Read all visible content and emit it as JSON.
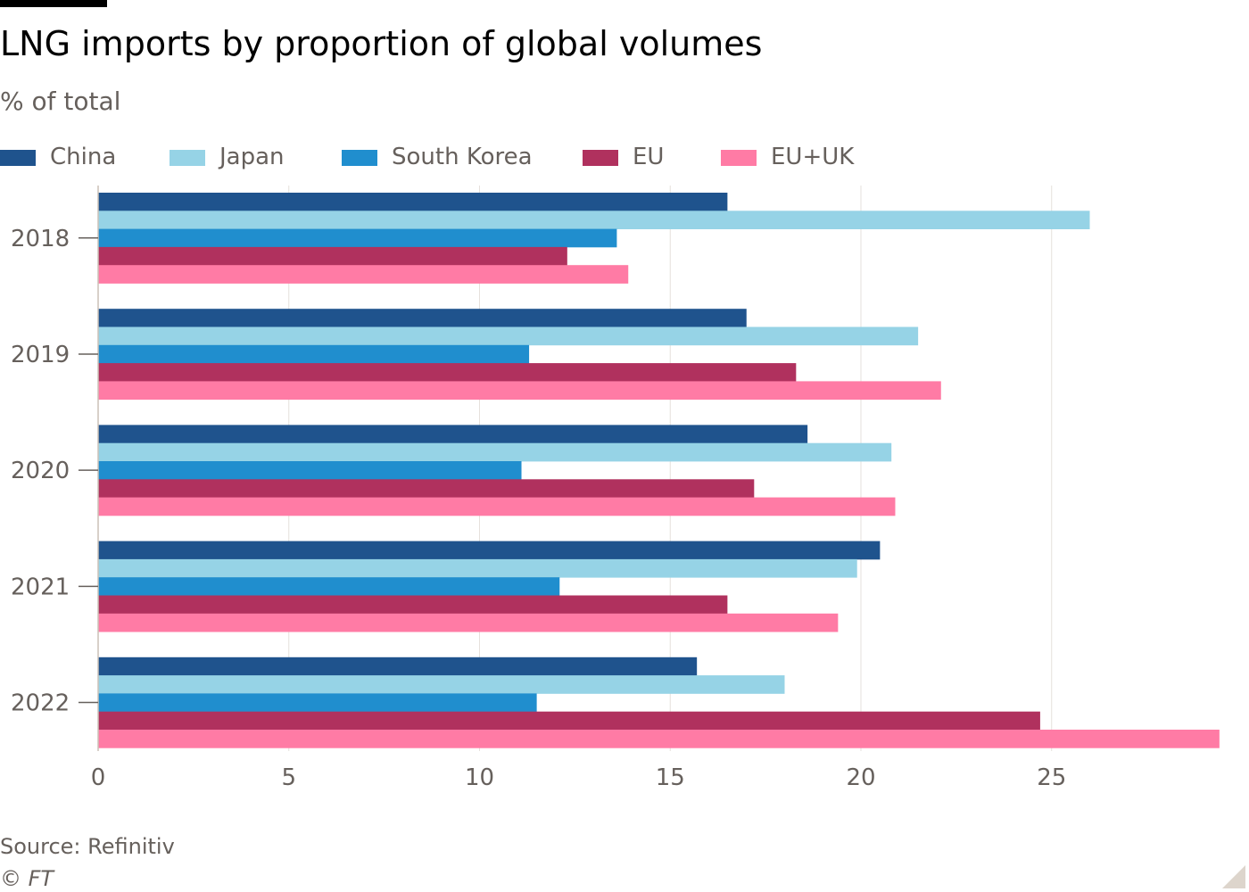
{
  "chart_data": {
    "type": "bar",
    "orientation": "horizontal",
    "title": "LNG imports by proportion of global volumes",
    "subtitle": "% of total",
    "categories": [
      "2018",
      "2019",
      "2020",
      "2021",
      "2022"
    ],
    "series": [
      {
        "name": "China",
        "color": "#1f538d",
        "values": [
          16.5,
          17.0,
          18.6,
          20.5,
          15.7
        ]
      },
      {
        "name": "Japan",
        "color": "#96d3e6",
        "values": [
          26.0,
          21.5,
          20.8,
          19.9,
          18.0
        ]
      },
      {
        "name": "South Korea",
        "color": "#208ece",
        "values": [
          13.6,
          11.3,
          11.1,
          12.1,
          11.5
        ]
      },
      {
        "name": "EU",
        "color": "#b0315e",
        "values": [
          12.3,
          18.3,
          17.2,
          16.5,
          24.7
        ]
      },
      {
        "name": "EU+UK",
        "color": "#ff7ba5",
        "values": [
          13.9,
          22.1,
          20.9,
          19.4,
          29.4
        ]
      }
    ],
    "x_ticks": [
      0,
      5,
      10,
      15,
      20,
      25
    ],
    "xlim": [
      0,
      29.4
    ],
    "xlabel": "",
    "ylabel": "",
    "grid": "vertical",
    "legend_position": "top"
  },
  "source": "Source: Refinitiv",
  "credit": "© FT"
}
